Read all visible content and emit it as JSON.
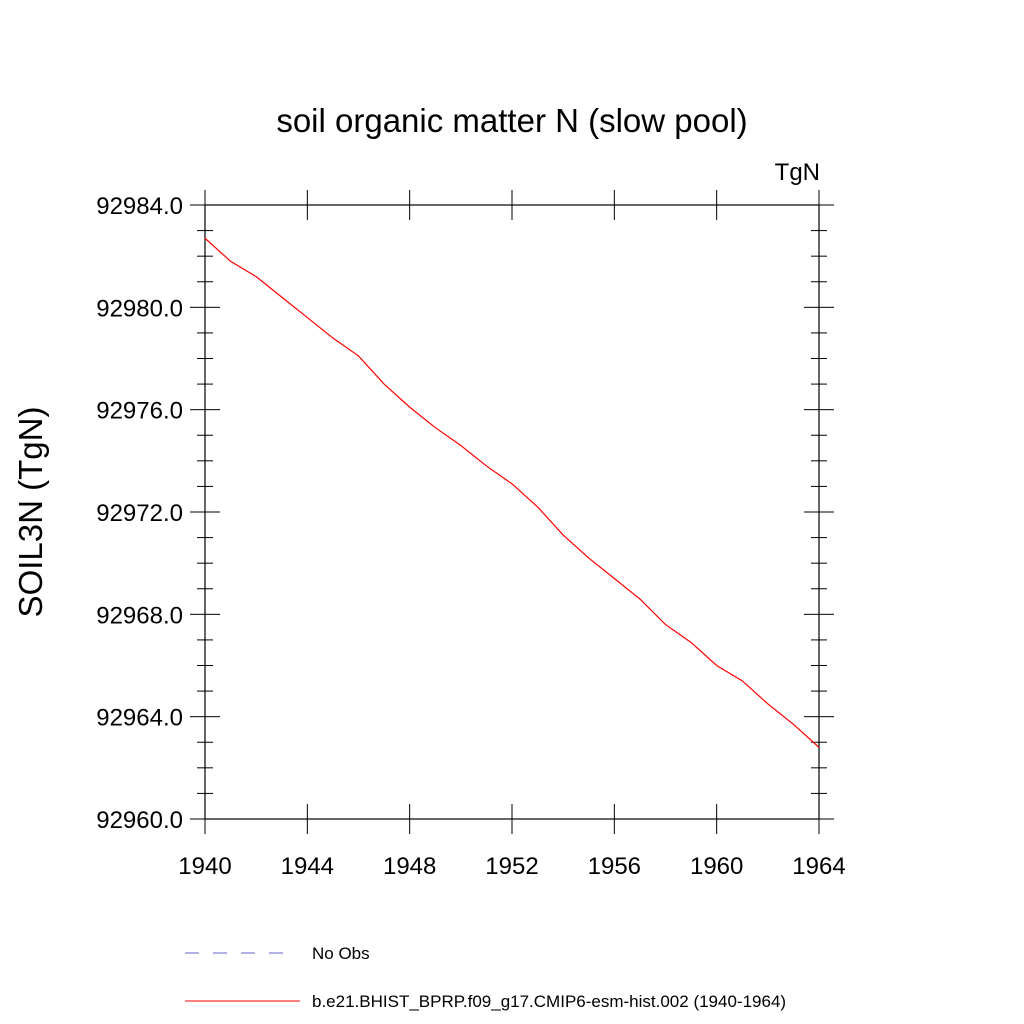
{
  "chart_data": {
    "type": "line",
    "title": "soil organic matter N (slow pool)",
    "units_label": "TgN",
    "ylabel": "SOIL3N  (TgN)",
    "xlabel": "",
    "xlim": [
      1940,
      1964
    ],
    "ylim": [
      92960.0,
      92984.0
    ],
    "x_ticks": [
      1940,
      1944,
      1948,
      1952,
      1956,
      1960,
      1964
    ],
    "y_ticks": [
      92960.0,
      92964.0,
      92968.0,
      92972.0,
      92976.0,
      92980.0,
      92984.0
    ],
    "x_tick_labels": [
      "1940",
      "1944",
      "1948",
      "1952",
      "1956",
      "1960",
      "1964"
    ],
    "y_tick_labels": [
      "92960.0",
      "92964.0",
      "92968.0",
      "92972.0",
      "92976.0",
      "92980.0",
      "92984.0"
    ],
    "grid": false,
    "legend_placement": "bottom",
    "legend": [
      {
        "label": "No Obs",
        "style": "dashed",
        "color": "#6666cc"
      },
      {
        "label": "b.e21.BHIST_BPRP.f09_g17.CMIP6-esm-hist.002 (1940-1964)",
        "style": "solid",
        "color": "#ff0000"
      }
    ],
    "series": [
      {
        "name": "b.e21.BHIST_BPRP.f09_g17.CMIP6-esm-hist.002 (1940-1964)",
        "color": "#ff0000",
        "x": [
          1940,
          1941,
          1942,
          1943,
          1944,
          1945,
          1946,
          1947,
          1948,
          1949,
          1950,
          1951,
          1952,
          1953,
          1954,
          1955,
          1956,
          1957,
          1958,
          1959,
          1960,
          1961,
          1962,
          1963,
          1964
        ],
        "y": [
          92982.7,
          92981.8,
          92981.2,
          92980.4,
          92979.6,
          92978.8,
          92978.1,
          92977.0,
          92976.1,
          92975.3,
          92974.6,
          92973.8,
          92973.1,
          92972.2,
          92971.1,
          92970.2,
          92969.4,
          92968.6,
          92967.6,
          92966.9,
          92966.0,
          92965.4,
          92964.5,
          92963.7,
          92962.8
        ]
      }
    ]
  }
}
